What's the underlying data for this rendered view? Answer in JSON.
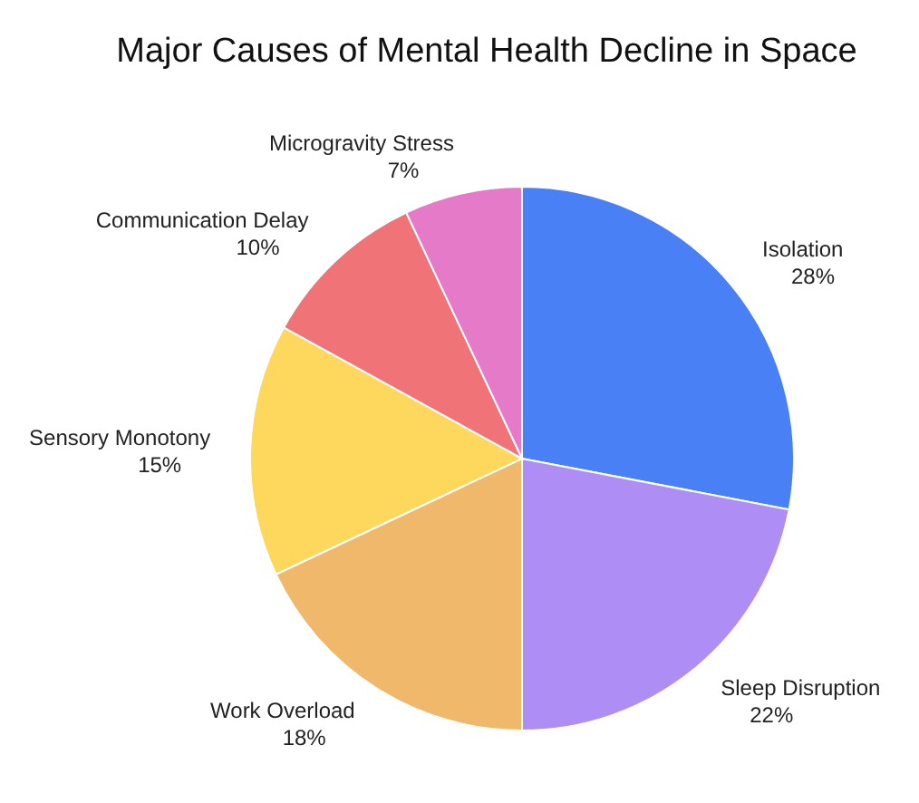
{
  "chart_data": {
    "type": "pie",
    "title": "Major Causes of Mental Health Decline in Space",
    "categories": [
      "Isolation",
      "Sleep Disruption",
      "Work Overload",
      "Sensory Monotony",
      "Communication Delay",
      "Microgravity Stress"
    ],
    "values": [
      28,
      22,
      18,
      15,
      10,
      7
    ],
    "colors": [
      "#4a80f5",
      "#ae8ef5",
      "#f0b86a",
      "#fdd85d",
      "#f07378",
      "#e57ac8"
    ],
    "value_labels": [
      "28%",
      "22%",
      "18%",
      "15%",
      "10%",
      "7%"
    ]
  }
}
